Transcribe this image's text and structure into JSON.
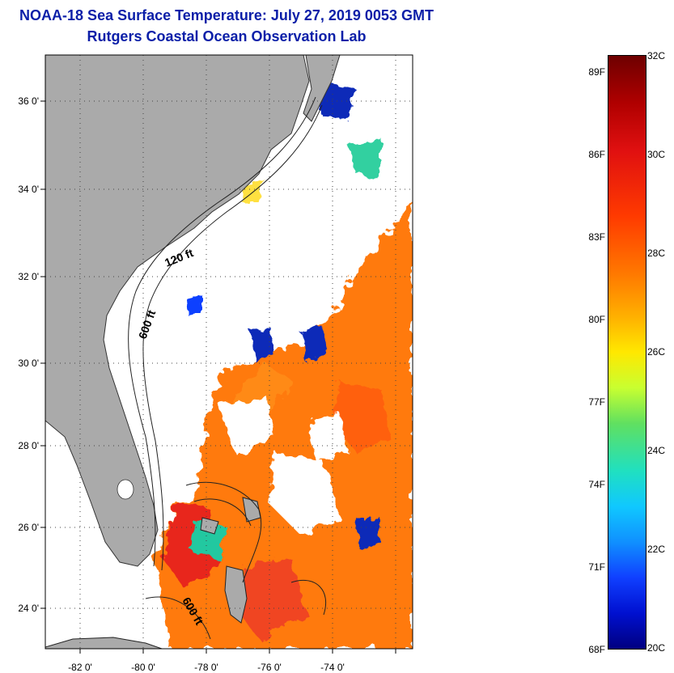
{
  "header": {
    "title": "NOAA-18 Sea Surface Temperature:  July 27, 2019 0053 GMT",
    "subtitle": "Rutgers Coastal Ocean Observation Lab"
  },
  "map": {
    "lat_labels": [
      "36 0'",
      "34 0'",
      "32 0'",
      "30 0'",
      "28 0'",
      "26 0'",
      "24 0'"
    ],
    "lon_labels": [
      "-82 0'",
      "-80 0'",
      "-78 0'",
      "-76 0'",
      "-74 0'"
    ],
    "contour_labels": [
      "120 ft",
      "600 ft",
      "600 ft"
    ],
    "colors": {
      "land": "#aaaaaa",
      "cloud": "#ffffff",
      "warm_water": "#ff7a10",
      "hot_water": "#e8281a",
      "cool_water": "#0a2ab8"
    }
  },
  "colorbar": {
    "fahrenheit_labels": [
      "89F",
      "86F",
      "83F",
      "80F",
      "77F",
      "74F",
      "71F",
      "68F"
    ],
    "celsius_labels": [
      "32C",
      "30C",
      "28C",
      "26C",
      "24C",
      "22C",
      "20C"
    ],
    "range_c": [
      20,
      32
    ]
  }
}
